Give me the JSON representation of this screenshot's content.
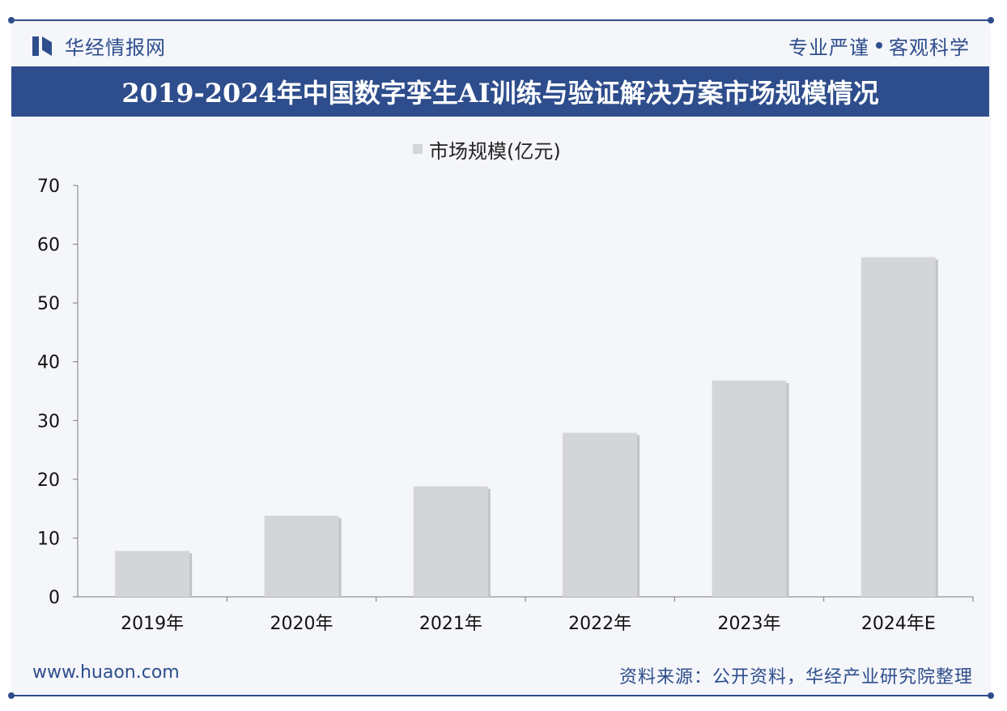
{
  "header": {
    "brand_name": "华经情报网",
    "slogan_left": "专业严谨",
    "slogan_right": "客观科学"
  },
  "title": "2019-2024年中国数字孪生AI训练与验证解决方案市场规模情况",
  "footer": {
    "website": "www.huaon.com",
    "source": "资料来源：公开资料，华经产业研究院整理"
  },
  "colors": {
    "brand": "#2e4d8c",
    "bar": "#d4d5d9",
    "background": "#f4f6fa"
  },
  "chart_data": {
    "type": "bar",
    "categories": [
      "2019年",
      "2020年",
      "2021年",
      "2022年",
      "2023年",
      "2024年E"
    ],
    "series": [
      {
        "name": "市场规模(亿元)",
        "values": [
          7.8,
          13.8,
          18.8,
          27.9,
          36.8,
          57.8
        ]
      }
    ],
    "ylim": [
      0,
      70
    ],
    "yticks": [
      0,
      10,
      20,
      30,
      40,
      50,
      60,
      70
    ],
    "legend_position": "top-center",
    "grid": false
  }
}
